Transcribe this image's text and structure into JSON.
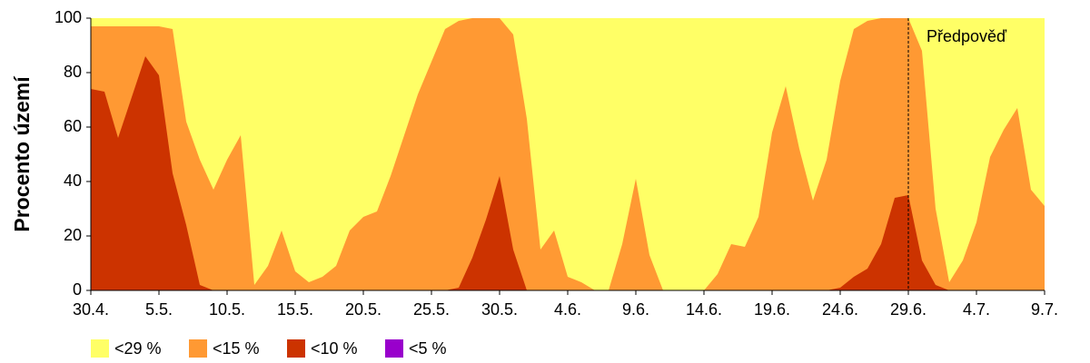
{
  "chart_data": {
    "type": "area",
    "ylabel": "Procento území",
    "categories": [
      "30.4.",
      null,
      null,
      null,
      null,
      "5.5.",
      null,
      null,
      null,
      null,
      "10.5.",
      null,
      null,
      null,
      null,
      "15.5.",
      null,
      null,
      null,
      null,
      "20.5.",
      null,
      null,
      null,
      null,
      "25.5.",
      null,
      null,
      null,
      null,
      "30.5.",
      null,
      null,
      null,
      null,
      "4.6.",
      null,
      null,
      null,
      null,
      "9.6.",
      null,
      null,
      null,
      null,
      "14.6.",
      null,
      null,
      null,
      null,
      "19.6.",
      null,
      null,
      null,
      null,
      "24.6.",
      null,
      null,
      null,
      null,
      "29.6.",
      null,
      null,
      null,
      null,
      "4.7.",
      null,
      null,
      null,
      null,
      "9.7."
    ],
    "series": [
      {
        "name": "<29 %",
        "color": "#ffff66",
        "values": [
          100,
          100,
          100,
          100,
          100,
          100,
          100,
          100,
          100,
          100,
          100,
          100,
          100,
          100,
          100,
          100,
          100,
          100,
          100,
          100,
          100,
          100,
          100,
          100,
          100,
          100,
          100,
          100,
          100,
          100,
          100,
          100,
          100,
          100,
          100,
          100,
          100,
          100,
          100,
          100,
          100,
          100,
          100,
          100,
          100,
          100,
          100,
          100,
          100,
          100,
          100,
          100,
          100,
          100,
          100,
          100,
          100,
          100,
          100,
          100,
          100,
          100,
          100,
          100,
          100,
          100,
          100,
          100,
          100,
          100,
          100
        ]
      },
      {
        "name": "<15 %",
        "color": "#ff9933",
        "values": [
          97,
          97,
          97,
          97,
          97,
          97,
          96,
          62,
          48,
          37,
          48,
          57,
          2,
          9,
          22,
          7,
          3,
          5,
          9,
          22,
          27,
          29,
          42,
          57,
          72,
          84,
          96,
          99,
          100,
          100,
          100,
          94,
          63,
          15,
          22,
          5,
          3,
          0,
          0,
          17,
          41,
          13,
          0,
          0,
          0,
          0,
          6,
          17,
          16,
          27,
          58,
          75,
          52,
          33,
          48,
          77,
          96,
          99,
          100,
          100,
          100,
          88,
          30,
          3,
          11,
          25,
          49,
          59,
          67,
          37,
          31
        ]
      },
      {
        "name": "<10 %",
        "color": "#cc3300",
        "values": [
          74,
          73,
          56,
          71,
          86,
          79,
          43,
          24,
          2,
          0,
          0,
          0,
          0,
          0,
          0,
          0,
          0,
          0,
          0,
          0,
          0,
          0,
          0,
          0,
          0,
          0,
          0,
          1,
          12,
          26,
          42,
          15,
          0,
          0,
          0,
          0,
          0,
          0,
          0,
          0,
          0,
          0,
          0,
          0,
          0,
          0,
          0,
          0,
          0,
          0,
          0,
          0,
          0,
          0,
          0,
          1,
          5,
          8,
          17,
          34,
          35,
          11,
          2,
          0,
          0,
          0,
          0,
          0,
          0,
          0,
          0
        ]
      },
      {
        "name": "<5 %",
        "color": "#9900cc",
        "values": [
          0,
          0,
          0,
          0,
          0,
          0,
          0,
          0,
          0,
          0,
          0,
          0,
          0,
          0,
          0,
          0,
          0,
          0,
          0,
          0,
          0,
          0,
          0,
          0,
          0,
          0,
          0,
          0,
          0,
          0,
          0,
          0,
          0,
          0,
          0,
          0,
          0,
          0,
          0,
          0,
          0,
          0,
          0,
          0,
          0,
          0,
          0,
          0,
          0,
          0,
          0,
          0,
          0,
          0,
          0,
          0,
          0,
          0,
          0,
          0,
          0,
          0,
          0,
          0,
          0,
          0,
          0,
          0,
          0,
          0,
          0
        ]
      }
    ],
    "ylim": [
      0,
      100
    ],
    "yticks": [
      0,
      20,
      40,
      60,
      80,
      100
    ],
    "annotation": {
      "text": "Předpověď",
      "x": "29.6."
    },
    "legend": "bottom-left"
  }
}
